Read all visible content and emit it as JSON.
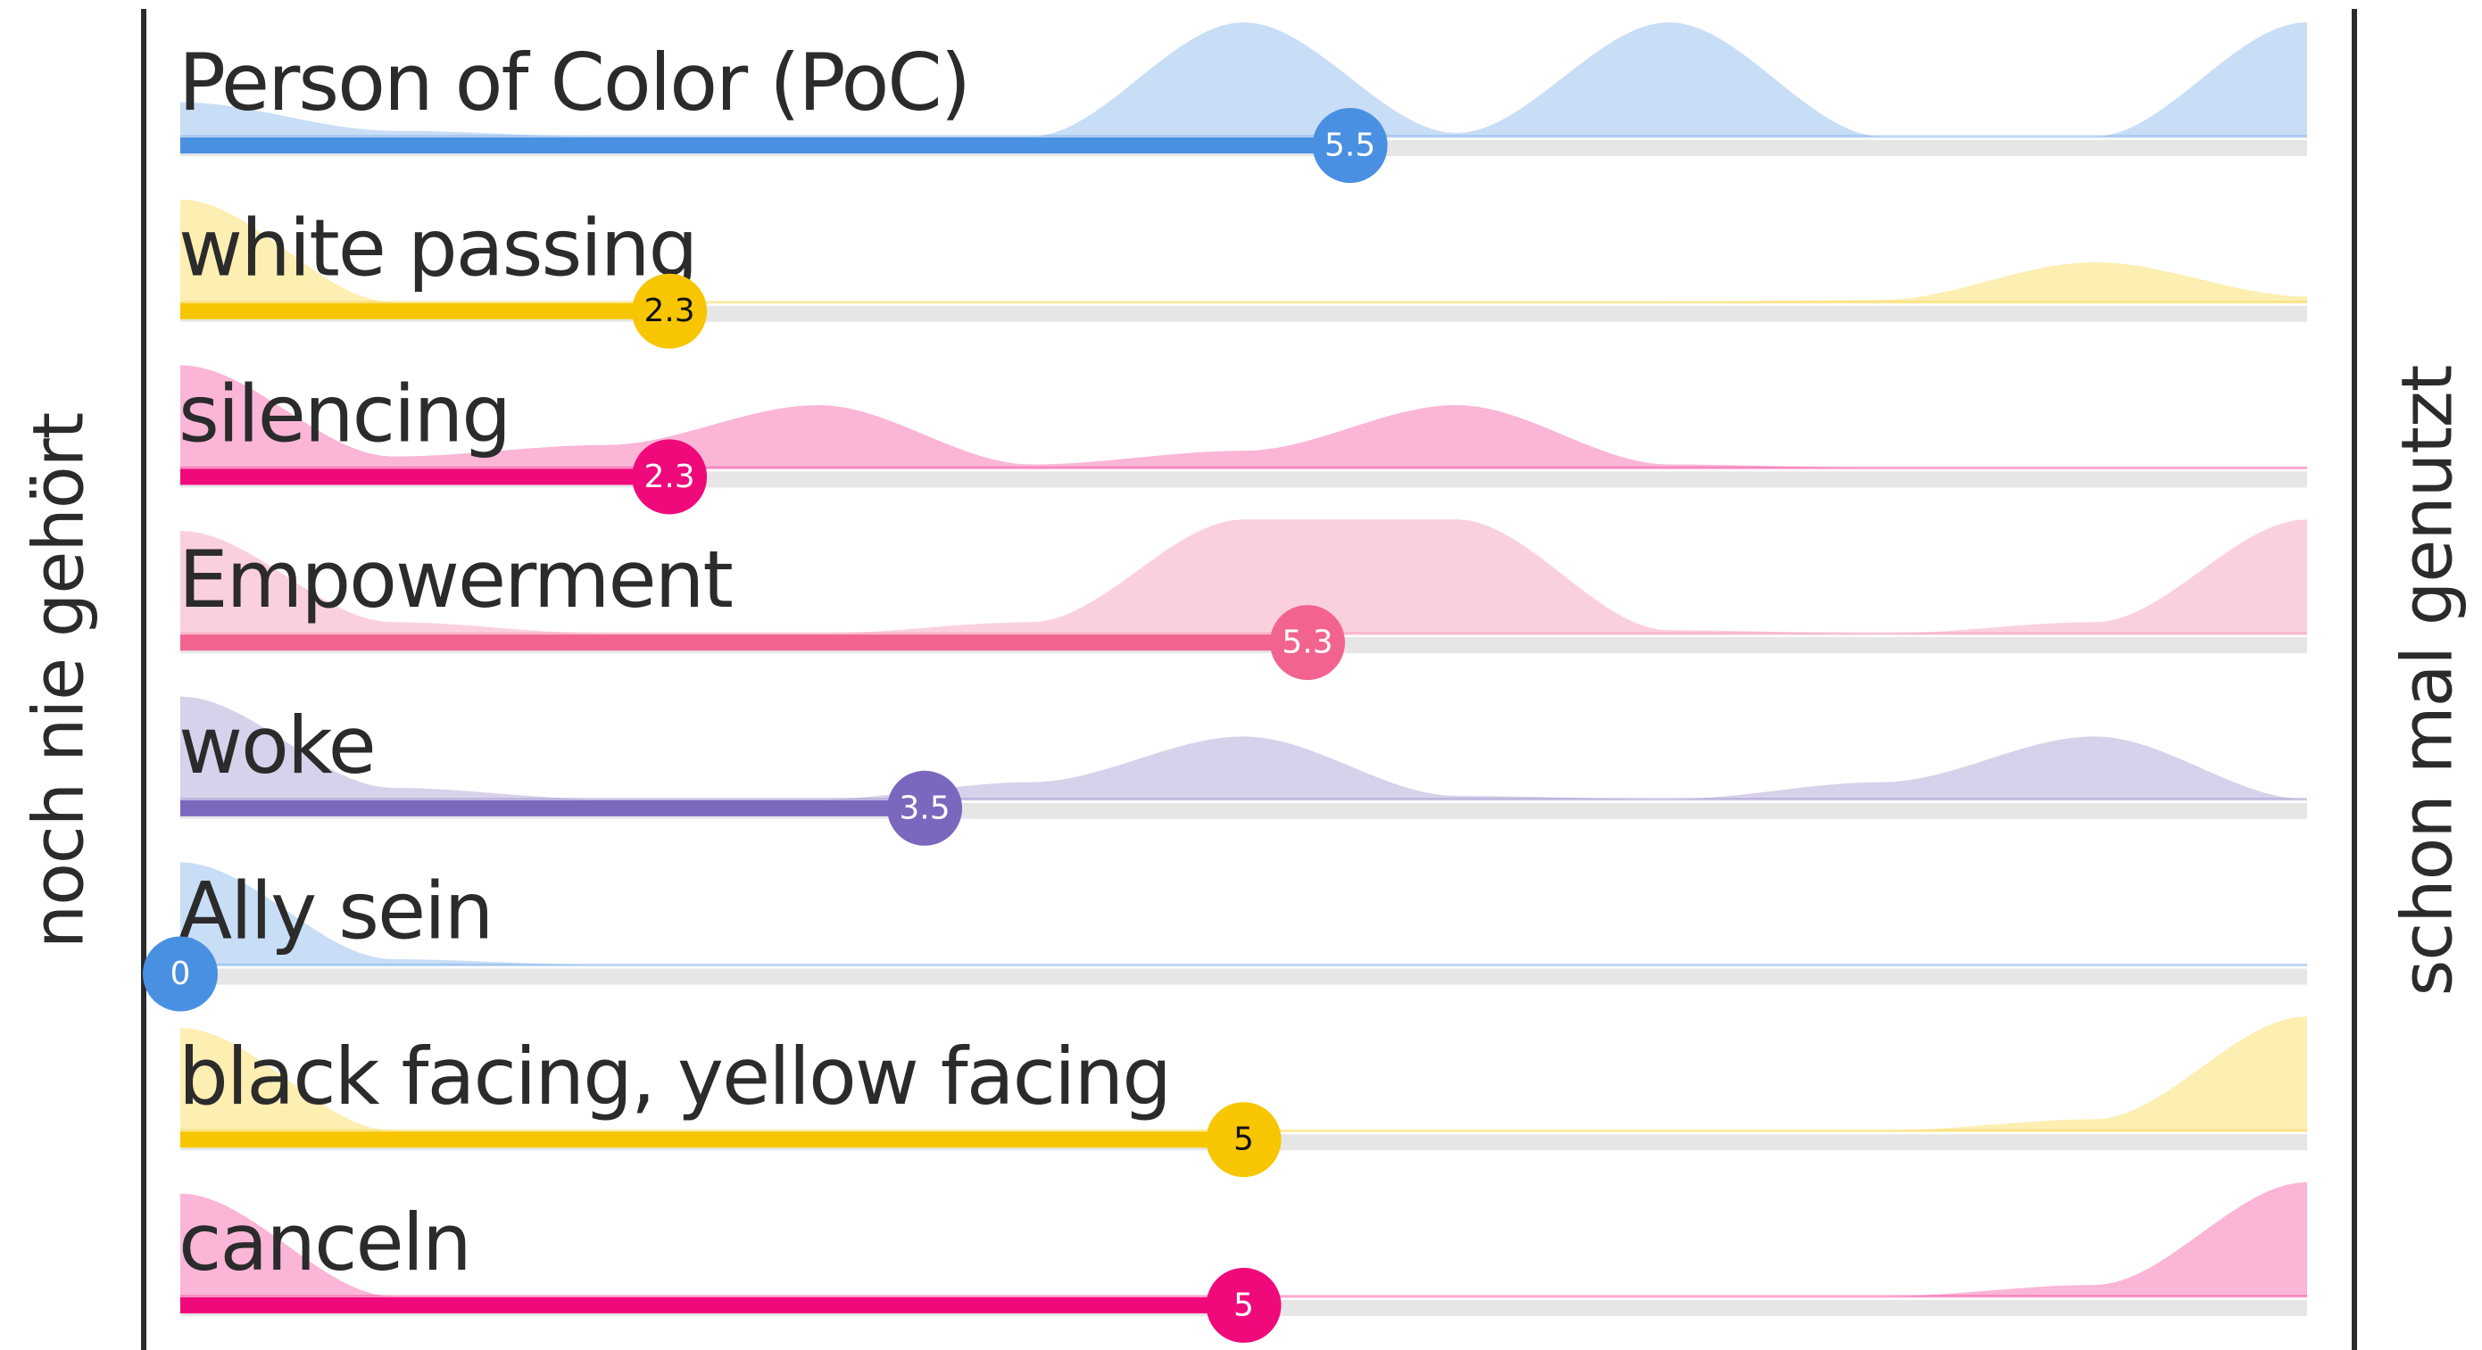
{
  "left_label": "noch nie gehört",
  "right_label": "schon mal genutzt",
  "xlim": [
    0,
    10
  ],
  "items": [
    {
      "label": "Person of Color (PoC)",
      "value": 5.5,
      "color": "#4a90e2",
      "distribution": [
        0.3,
        0.05,
        0,
        0,
        0,
        1,
        0.03,
        1,
        0,
        0,
        1
      ]
    },
    {
      "label": "white passing",
      "value": 2.3,
      "color": "#f7c600",
      "distribution": [
        0.9,
        0,
        0,
        0,
        0,
        0,
        0,
        0,
        0.02,
        0.35,
        0.05
      ]
    },
    {
      "label": "silencing",
      "value": 2.3,
      "color": "#f0097a",
      "distribution": [
        0.9,
        0.1,
        0.2,
        0.55,
        0.03,
        0.15,
        0.55,
        0.03,
        0,
        0,
        0
      ]
    },
    {
      "label": "Empowerment",
      "value": 5.3,
      "color": "#f2648f",
      "distribution": [
        0.9,
        0.1,
        0,
        0,
        0.1,
        1,
        1,
        0.03,
        0,
        0.1,
        1
      ]
    },
    {
      "label": "woke",
      "value": 3.5,
      "color": "#7b68be",
      "distribution": [
        0.9,
        0.1,
        0,
        0,
        0.15,
        0.55,
        0.03,
        0,
        0.15,
        0.55,
        0
      ]
    },
    {
      "label": "Ally sein",
      "value": 0,
      "color": "#4a90e2",
      "distribution": [
        0.9,
        0.05,
        0,
        0,
        0,
        0,
        0,
        0,
        0,
        0,
        0
      ]
    },
    {
      "label": "black facing, yellow facing",
      "value": 5,
      "color": "#f7c600",
      "distribution": [
        0.9,
        0,
        0,
        0,
        0,
        0,
        0,
        0,
        0,
        0.1,
        1
      ]
    },
    {
      "label": "canceln",
      "value": 5,
      "color": "#f0097a",
      "distribution": [
        0.9,
        0,
        0,
        0,
        0,
        0,
        0,
        0,
        0,
        0.1,
        1
      ]
    }
  ]
}
